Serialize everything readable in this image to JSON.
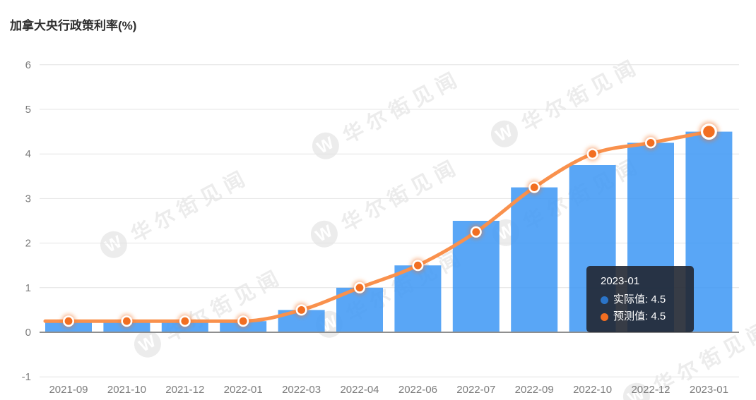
{
  "title": "加拿大央行政策利率(%)",
  "watermark": {
    "text": "华尔街见闻",
    "logo_glyph": "W"
  },
  "tooltip": {
    "title": "2023-01",
    "rows": [
      {
        "label": "实际值",
        "value": "4.5",
        "color": "#2B74C8"
      },
      {
        "label": "预测值",
        "value": "4.5",
        "color": "#F26E21"
      }
    ]
  },
  "chart_data": {
    "type": "bar",
    "title": "加拿大央行政策利率(%)",
    "categories": [
      "2021-09",
      "2021-10",
      "2021-12",
      "2022-01",
      "2022-03",
      "2022-04",
      "2022-06",
      "2022-07",
      "2022-09",
      "2022-10",
      "2022-12",
      "2023-01"
    ],
    "series": [
      {
        "name": "实际值",
        "type": "bar",
        "color": "#3E97F5",
        "values": [
          0.25,
          0.25,
          0.25,
          0.25,
          0.5,
          1.0,
          1.5,
          2.5,
          3.25,
          3.75,
          4.25,
          4.5
        ]
      },
      {
        "name": "预测值",
        "type": "line",
        "color": "#F9914D",
        "point_color": "#F26E21",
        "values": [
          0.25,
          0.25,
          0.25,
          0.25,
          0.5,
          1.0,
          1.5,
          2.25,
          3.25,
          4.0,
          4.25,
          4.5
        ]
      }
    ],
    "xlabel": "",
    "ylabel": "",
    "ylim": [
      -1,
      6
    ],
    "yticks": [
      -1,
      0,
      1,
      2,
      3,
      4,
      5,
      6
    ],
    "grid": true,
    "legend_position": "none",
    "highlighted_category": "2023-01"
  },
  "colors": {
    "bar": "#3E97F5",
    "line": "#F9914D",
    "point": "#F26E21",
    "grid": "#e4e4e4",
    "zero_axis": "#8f8f8f",
    "axis_label": "#7c7c7c",
    "tooltip_bg": "rgba(33,39,50,0.9)"
  }
}
